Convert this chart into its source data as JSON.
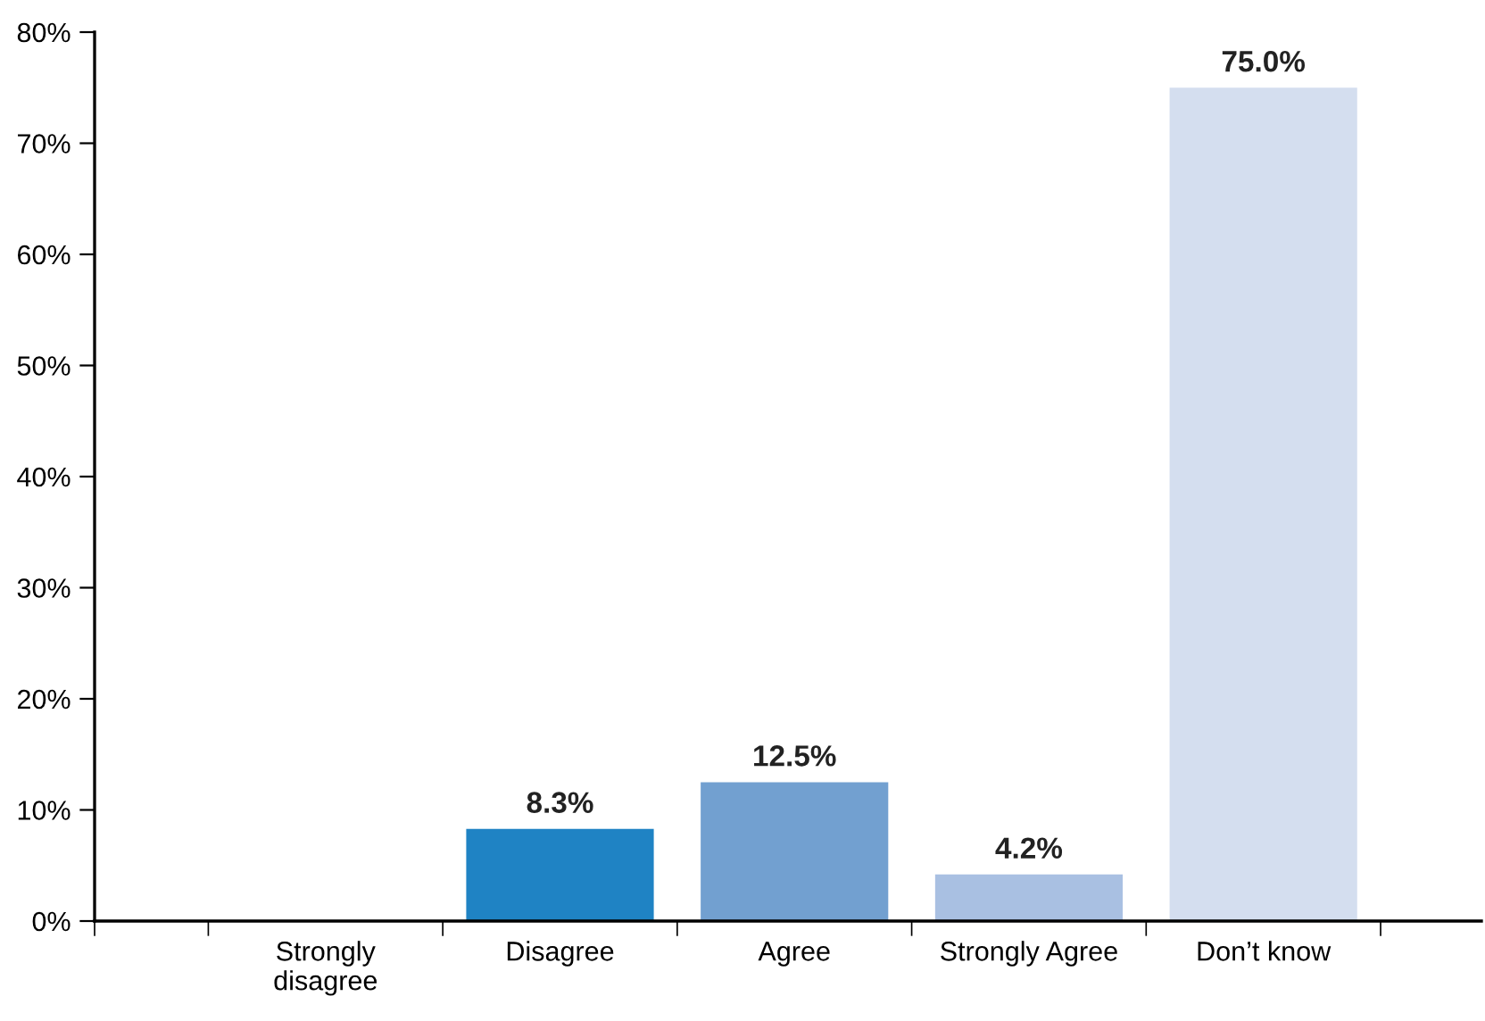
{
  "chart_data": {
    "type": "bar",
    "categories": [
      "Strongly\ndisagree",
      "Disagree",
      "Agree",
      "Strongly Agree",
      "Don’t know"
    ],
    "values": [
      0,
      8.3,
      12.5,
      4.2,
      75.0
    ],
    "colors": [
      "#1a5a9a",
      "#1f83c4",
      "#72a0d0",
      "#a9c0e2",
      "#d4deef"
    ],
    "value_labels": [
      null,
      "8.3%",
      "12.5%",
      "4.2%",
      "75.0%"
    ],
    "ylim": [
      0,
      80
    ],
    "yticks": [
      {
        "value": 0,
        "label": "0%"
      },
      {
        "value": 10,
        "label": "10%"
      },
      {
        "value": 20,
        "label": "20%"
      },
      {
        "value": 30,
        "label": "30%"
      },
      {
        "value": 40,
        "label": "40%"
      },
      {
        "value": 50,
        "label": "50%"
      },
      {
        "value": 60,
        "label": "60%"
      },
      {
        "value": 70,
        "label": "70%"
      },
      {
        "value": 80,
        "label": "80%"
      }
    ],
    "grid": false,
    "legend": false
  }
}
